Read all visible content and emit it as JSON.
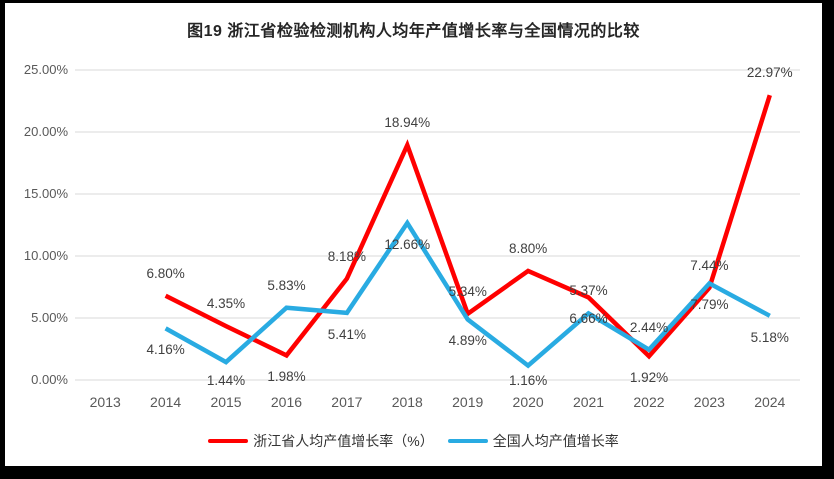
{
  "title": "图19  浙江省检验检测机构人均年产值增长率与全国情况的比较",
  "chart_data": {
    "type": "line",
    "categories": [
      "2013",
      "2014",
      "2015",
      "2016",
      "2017",
      "2018",
      "2019",
      "2020",
      "2021",
      "2022",
      "2023",
      "2024"
    ],
    "series": [
      {
        "name": "浙江省人均产值增长率（%）",
        "color": "#FF0000",
        "stroke_width": 4.5,
        "values": [
          null,
          6.8,
          4.35,
          1.98,
          8.18,
          18.94,
          5.34,
          8.8,
          6.66,
          1.92,
          7.44,
          22.97
        ],
        "labels": [
          "",
          "6.80%",
          "4.35%",
          "1.98%",
          "8.18%",
          "18.94%",
          "5.34%",
          "8.80%",
          "6.66%",
          "1.92%",
          "7.44%",
          "22.97%"
        ],
        "label_side": [
          "",
          "above",
          "above",
          "below",
          "above",
          "above",
          "above",
          "above",
          "below",
          "below",
          "above",
          "above"
        ]
      },
      {
        "name": "全国人均产值增长率",
        "color": "#29ABE2",
        "stroke_width": 4.5,
        "values": [
          null,
          4.16,
          1.44,
          5.83,
          5.41,
          12.66,
          4.89,
          1.16,
          5.37,
          2.44,
          7.79,
          5.18
        ],
        "labels": [
          "",
          "4.16%",
          "1.44%",
          "5.83%",
          "5.41%",
          "12.66%",
          "4.89%",
          "1.16%",
          "5.37%",
          "2.44%",
          "7.79%",
          "5.18%"
        ],
        "label_side": [
          "",
          "below",
          "below",
          "above",
          "below",
          "below",
          "below",
          "below",
          "above",
          "above",
          "below",
          "below"
        ]
      }
    ],
    "y_ticks": [
      "0.00%",
      "5.00%",
      "10.00%",
      "15.00%",
      "20.00%",
      "25.00%"
    ],
    "ylim": [
      0,
      25
    ],
    "y_tick_step": 5,
    "grid": true,
    "legend_position": "bottom",
    "colors": {
      "grid": "#D9D9D9",
      "tick_text": "#595959",
      "label_text": "#404040",
      "title_text": "#262626",
      "background": "#FFFFFF",
      "frame": "#000000"
    }
  }
}
